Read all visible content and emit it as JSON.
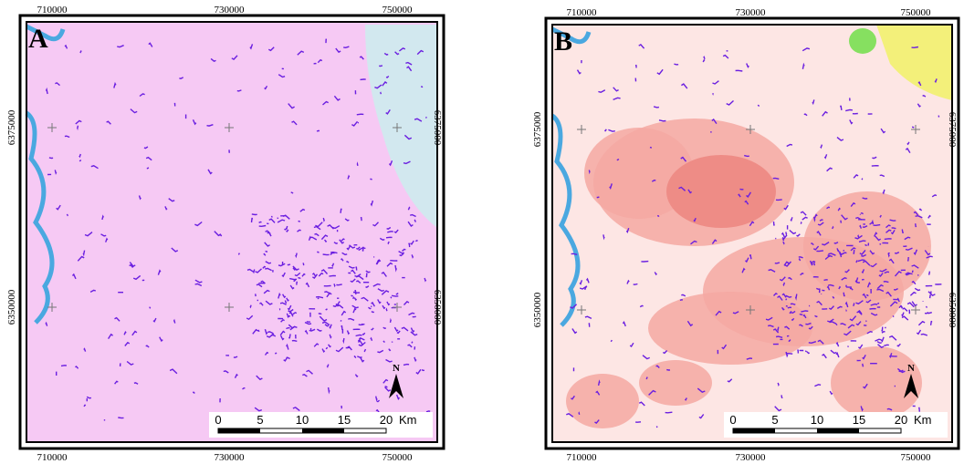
{
  "panels": [
    {
      "label": "A",
      "top_ticks": [
        "710000",
        "730000",
        "750000"
      ],
      "bottom_ticks": [
        "710000",
        "730000",
        "750000"
      ],
      "left_ticks": [
        "6375000",
        "6350000"
      ],
      "right_ticks": [
        "6375000",
        "6350000"
      ],
      "scale_labels": [
        "0",
        "5",
        "10",
        "15",
        "20"
      ],
      "scale_unit": "Km",
      "north": "N"
    },
    {
      "label": "B",
      "top_ticks": [
        "710000",
        "730000",
        "750000"
      ],
      "bottom_ticks": [
        "710000",
        "730000",
        "750000"
      ],
      "left_ticks": [
        "6375000",
        "6350000"
      ],
      "right_ticks": [
        "6375000",
        "6350000"
      ],
      "scale_labels": [
        "0",
        "5",
        "10",
        "15",
        "20"
      ],
      "scale_unit": "Km",
      "north": "N"
    }
  ]
}
